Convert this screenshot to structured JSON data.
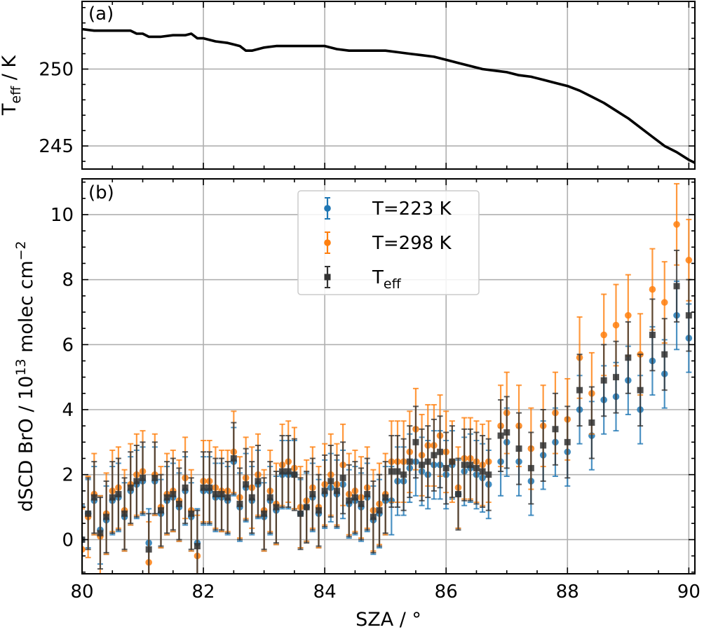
{
  "chart_data": [
    {
      "panel": "(a)",
      "type": "line",
      "ylabel": "T",
      "ylabel_sub": "eff",
      "ylabel_unit": " / K",
      "xlim": [
        80,
        90.1
      ],
      "ylim": [
        243.5,
        254.4
      ],
      "yticks": [
        245,
        250
      ],
      "xticks": [
        80,
        82,
        84,
        86,
        88,
        90
      ],
      "grid": true,
      "series": [
        {
          "color": "#000000",
          "x": [
            80.0,
            80.2,
            80.4,
            80.6,
            80.8,
            80.9,
            81.0,
            81.1,
            81.2,
            81.3,
            81.5,
            81.7,
            81.8,
            81.9,
            82.0,
            82.2,
            82.4,
            82.5,
            82.6,
            82.7,
            82.8,
            82.9,
            83.0,
            83.2,
            83.5,
            83.8,
            84.0,
            84.2,
            84.4,
            84.7,
            85.0,
            85.2,
            85.4,
            85.6,
            85.8,
            86.0,
            86.2,
            86.4,
            86.6,
            86.8,
            87.0,
            87.2,
            87.4,
            87.6,
            87.8,
            88.0,
            88.2,
            88.4,
            88.6,
            88.8,
            89.0,
            89.2,
            89.4,
            89.6,
            89.8,
            90.0,
            90.1
          ],
          "y": [
            252.6,
            252.5,
            252.5,
            252.5,
            252.5,
            252.3,
            252.3,
            252.1,
            252.1,
            252.1,
            252.2,
            252.2,
            252.3,
            252.0,
            252.0,
            251.8,
            251.7,
            251.6,
            251.5,
            251.2,
            251.2,
            251.3,
            251.4,
            251.5,
            251.5,
            251.5,
            251.5,
            251.3,
            251.2,
            251.2,
            251.2,
            251.1,
            251.0,
            250.9,
            250.8,
            250.6,
            250.4,
            250.2,
            250.0,
            249.9,
            249.8,
            249.6,
            249.5,
            249.3,
            249.1,
            248.9,
            248.6,
            248.2,
            247.8,
            247.3,
            246.8,
            246.2,
            245.6,
            245.0,
            244.6,
            244.1,
            243.9
          ]
        }
      ]
    },
    {
      "panel": "(b)",
      "type": "scatter",
      "xlabel": "SZA / °",
      "ylabel": "dSCD BrO / 10",
      "ylabel_sup": "13",
      "ylabel_unit": " molec cm",
      "ylabel_unit_sup": "−2",
      "xlim": [
        80,
        90.1
      ],
      "ylim": [
        -1.05,
        11.1
      ],
      "yticks": [
        0,
        2,
        4,
        6,
        8,
        10
      ],
      "xticks": [
        80,
        82,
        84,
        86,
        88,
        90
      ],
      "grid": true,
      "legend": "top-center",
      "series": [
        {
          "name": "T=223 K",
          "marker": "circle",
          "color": "#1f77b4",
          "x": [
            80.0,
            80.1,
            80.2,
            80.3,
            80.4,
            80.5,
            80.6,
            80.7,
            80.8,
            80.9,
            81.0,
            81.1,
            81.2,
            81.3,
            81.4,
            81.5,
            81.6,
            81.7,
            81.8,
            81.9,
            82.0,
            82.1,
            82.2,
            82.3,
            82.4,
            82.5,
            82.6,
            82.7,
            82.8,
            82.9,
            83.0,
            83.1,
            83.2,
            83.3,
            83.4,
            83.5,
            83.6,
            83.7,
            83.8,
            83.9,
            84.0,
            84.1,
            84.2,
            84.3,
            84.4,
            84.5,
            84.6,
            84.7,
            84.8,
            84.9,
            85.0,
            85.1,
            85.2,
            85.3,
            85.4,
            85.5,
            85.6,
            85.7,
            85.8,
            85.9,
            86.0,
            86.1,
            86.2,
            86.3,
            86.4,
            86.5,
            86.6,
            86.7,
            86.9,
            87.0,
            87.2,
            87.4,
            87.6,
            87.8,
            88.0,
            88.2,
            88.4,
            88.6,
            88.8,
            89.0,
            89.2,
            89.4,
            89.6,
            89.8,
            90.0
          ],
          "y": [
            0.0,
            0.8,
            1.2,
            0.3,
            0.6,
            1.2,
            1.3,
            0.7,
            1.5,
            1.7,
            1.8,
            -0.1,
            1.8,
            0.8,
            1.2,
            1.3,
            1.0,
            1.5,
            0.7,
            -0.1,
            1.5,
            1.5,
            1.3,
            1.3,
            1.2,
            2.4,
            1.0,
            1.6,
            1.2,
            1.7,
            0.7,
            1.2,
            0.9,
            2.0,
            2.0,
            2.0,
            0.8,
            1.0,
            1.3,
            0.8,
            1.4,
            1.6,
            1.4,
            1.7,
            1.1,
            1.2,
            1.0,
            1.3,
            0.6,
            0.8,
            1.2,
            1.2,
            1.8,
            1.8,
            2.2,
            2.4,
            2.1,
            2.0,
            2.3,
            2.3,
            2.0,
            2.3,
            1.4,
            2.1,
            2.2,
            2.0,
            1.9,
            1.7,
            2.4,
            3.0,
            2.4,
            1.8,
            2.6,
            3.0,
            2.7,
            4.0,
            3.2,
            4.3,
            4.4,
            4.9,
            4.0,
            5.5,
            5.1,
            6.9,
            6.2
          ],
          "err": 1.05
        },
        {
          "name": "T=298 K",
          "marker": "circle",
          "color": "#ff7f0e",
          "x": [
            80.0,
            80.1,
            80.2,
            80.3,
            80.4,
            80.5,
            80.6,
            80.7,
            80.8,
            80.9,
            81.0,
            81.1,
            81.2,
            81.3,
            81.4,
            81.5,
            81.6,
            81.7,
            81.8,
            81.9,
            82.0,
            82.1,
            82.2,
            82.3,
            82.4,
            82.5,
            82.6,
            82.7,
            82.8,
            82.9,
            83.0,
            83.1,
            83.2,
            83.3,
            83.4,
            83.5,
            83.6,
            83.7,
            83.8,
            83.9,
            84.0,
            84.1,
            84.2,
            84.3,
            84.4,
            84.5,
            84.6,
            84.7,
            84.8,
            84.9,
            85.0,
            85.1,
            85.2,
            85.3,
            85.4,
            85.5,
            85.6,
            85.7,
            85.8,
            85.9,
            86.0,
            86.1,
            86.2,
            86.3,
            86.4,
            86.5,
            86.6,
            86.7,
            86.9,
            87.0,
            87.2,
            87.4,
            87.6,
            87.8,
            88.0,
            88.2,
            88.4,
            88.6,
            88.8,
            89.0,
            89.2,
            89.4,
            89.6,
            89.8,
            90.0
          ],
          "y": [
            -0.3,
            0.7,
            1.4,
            0.1,
            0.8,
            1.5,
            1.6,
            0.9,
            1.7,
            2.0,
            2.1,
            -0.7,
            2.0,
            1.0,
            1.4,
            1.5,
            1.2,
            1.9,
            0.9,
            -0.5,
            1.8,
            1.8,
            1.6,
            1.5,
            1.5,
            2.7,
            1.3,
            1.9,
            1.6,
            2.0,
            0.9,
            1.5,
            1.1,
            2.3,
            2.4,
            2.2,
            1.0,
            1.2,
            1.6,
            1.0,
            1.7,
            2.0,
            1.7,
            2.3,
            1.4,
            1.5,
            1.3,
            1.6,
            0.9,
            1.1,
            1.4,
            2.4,
            2.4,
            2.4,
            2.7,
            3.4,
            2.6,
            2.9,
            2.9,
            3.2,
            2.7,
            2.4,
            1.6,
            2.5,
            2.5,
            2.4,
            2.3,
            2.4,
            3.5,
            3.9,
            3.5,
            2.8,
            3.5,
            3.9,
            3.7,
            5.6,
            4.5,
            6.3,
            6.6,
            6.9,
            5.7,
            7.7,
            7.3,
            9.7,
            8.6
          ],
          "err": 1.25
        },
        {
          "name": "T",
          "name_sub": "eff",
          "marker": "square",
          "color": "#333333",
          "x": [
            80.0,
            80.1,
            80.2,
            80.3,
            80.4,
            80.5,
            80.6,
            80.7,
            80.8,
            80.9,
            81.0,
            81.1,
            81.2,
            81.3,
            81.4,
            81.5,
            81.6,
            81.7,
            81.8,
            81.9,
            82.0,
            82.1,
            82.2,
            82.3,
            82.4,
            82.5,
            82.6,
            82.7,
            82.8,
            82.9,
            83.0,
            83.1,
            83.2,
            83.3,
            83.4,
            83.5,
            83.6,
            83.7,
            83.8,
            83.9,
            84.0,
            84.1,
            84.2,
            84.3,
            84.4,
            84.5,
            84.6,
            84.7,
            84.8,
            84.9,
            85.0,
            85.1,
            85.2,
            85.3,
            85.4,
            85.5,
            85.6,
            85.7,
            85.8,
            85.9,
            86.0,
            86.1,
            86.2,
            86.3,
            86.4,
            86.5,
            86.6,
            86.7,
            86.9,
            87.0,
            87.2,
            87.4,
            87.6,
            87.8,
            88.0,
            88.2,
            88.4,
            88.6,
            88.8,
            89.0,
            89.2,
            89.4,
            89.6,
            89.8,
            90.0
          ],
          "y": [
            0.0,
            0.8,
            1.3,
            0.2,
            0.7,
            1.3,
            1.4,
            0.8,
            1.6,
            1.8,
            1.9,
            -0.3,
            1.9,
            0.9,
            1.3,
            1.4,
            1.1,
            1.6,
            0.8,
            -0.2,
            1.6,
            1.6,
            1.4,
            1.4,
            1.3,
            2.5,
            1.1,
            1.7,
            1.3,
            1.8,
            0.8,
            1.3,
            1.0,
            2.1,
            2.1,
            2.0,
            0.8,
            1.0,
            1.4,
            0.9,
            1.5,
            1.8,
            1.5,
            1.9,
            1.2,
            1.3,
            1.1,
            1.4,
            0.7,
            0.9,
            1.3,
            2.1,
            2.1,
            2.0,
            2.4,
            3.0,
            2.3,
            2.4,
            2.6,
            2.7,
            2.2,
            2.4,
            1.4,
            2.3,
            2.3,
            2.2,
            2.1,
            2.0,
            3.2,
            3.3,
            2.8,
            2.2,
            2.9,
            3.4,
            3.0,
            4.6,
            3.6,
            4.9,
            5.0,
            5.6,
            4.6,
            6.3,
            5.7,
            7.8,
            6.9
          ],
          "err": 1.1
        }
      ]
    }
  ]
}
